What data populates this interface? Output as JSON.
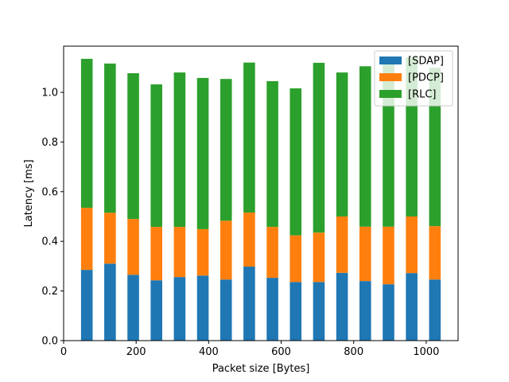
{
  "chart_data": {
    "type": "bar",
    "stacked": true,
    "xlabel": "Packet size [Bytes]",
    "ylabel": "Latency [ms]",
    "xlim": [
      0,
      1088
    ],
    "ylim": [
      0,
      1.186
    ],
    "xticks": [
      0,
      200,
      400,
      600,
      800,
      1000
    ],
    "xtick_labels": [
      "0",
      "200",
      "400",
      "600",
      "800",
      "1000"
    ],
    "yticks": [
      0.0,
      0.2,
      0.4,
      0.6,
      0.8,
      1.0
    ],
    "ytick_labels": [
      "0.0",
      "0.2",
      "0.4",
      "0.6",
      "0.8",
      "1.0"
    ],
    "x": [
      64,
      128,
      192,
      256,
      320,
      384,
      448,
      512,
      576,
      640,
      704,
      768,
      832,
      896,
      960,
      1024
    ],
    "bar_width": 32,
    "legend_position": "top-right",
    "grid": false,
    "series": [
      {
        "name": "[SDAP]",
        "color": "#1f77b4",
        "values": [
          0.285,
          0.31,
          0.265,
          0.243,
          0.256,
          0.262,
          0.246,
          0.298,
          0.253,
          0.236,
          0.236,
          0.273,
          0.24,
          0.227,
          0.272,
          0.246
        ]
      },
      {
        "name": "[PDCP]",
        "color": "#ff7f0e",
        "values": [
          0.25,
          0.205,
          0.225,
          0.215,
          0.202,
          0.187,
          0.237,
          0.218,
          0.205,
          0.188,
          0.199,
          0.227,
          0.219,
          0.232,
          0.228,
          0.215
        ]
      },
      {
        "name": "[RLC]",
        "color": "#2ca02c",
        "values": [
          0.6,
          0.601,
          0.587,
          0.574,
          0.622,
          0.609,
          0.571,
          0.604,
          0.587,
          0.592,
          0.684,
          0.58,
          0.646,
          0.661,
          0.64,
          0.638
        ]
      }
    ]
  }
}
